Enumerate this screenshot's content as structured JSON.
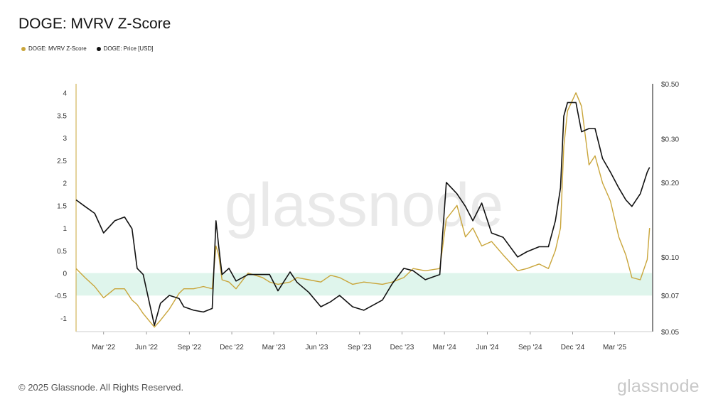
{
  "title": "DOGE: MVRV Z-Score",
  "legend": [
    {
      "label": "DOGE: MVRV Z-Score",
      "color": "#c9a53a"
    },
    {
      "label": "DOGE: Price [USD]",
      "color": "#111111"
    }
  ],
  "footer": "© 2025 Glassnode. All Rights Reserved.",
  "brand": "glassnode",
  "watermark": "glassnode",
  "colors": {
    "zscore": "#c9a53a",
    "price": "#111111",
    "band": "#dff5ec",
    "grid": "#eeeeee"
  },
  "chart_data": {
    "type": "line",
    "title": "DOGE: MVRV Z-Score",
    "x_ticks": [
      "Mar '22",
      "Jun '22",
      "Sep '22",
      "Dec '22",
      "Mar '23",
      "Jun '23",
      "Sep '23",
      "Dec '23",
      "Mar '24",
      "Jun '24",
      "Sep '24",
      "Dec '24",
      "Mar '25"
    ],
    "x_range": [
      "2022-01-01",
      "2025-05-20"
    ],
    "y_left": {
      "ticks": [
        "4",
        "3.5",
        "3",
        "2.5",
        "2",
        "1.5",
        "1",
        "0.5",
        "0",
        "-0.5",
        "-1"
      ],
      "range": [
        -1.3,
        4.2
      ]
    },
    "y_right": {
      "ticks": [
        "$0.50",
        "$0.30",
        "$0.20",
        "$0.10",
        "$0.07",
        "$0.05"
      ],
      "scale": "log",
      "range": [
        0.05,
        0.5
      ]
    },
    "band": {
      "from": -0.5,
      "to": 0
    },
    "series": [
      {
        "name": "DOGE: MVRV Z-Score",
        "axis": "left",
        "x": [
          "2022-01-01",
          "2022-01-20",
          "2022-02-10",
          "2022-03-01",
          "2022-03-25",
          "2022-04-15",
          "2022-05-01",
          "2022-05-12",
          "2022-05-25",
          "2022-06-10",
          "2022-06-18",
          "2022-07-01",
          "2022-07-20",
          "2022-08-10",
          "2022-08-20",
          "2022-09-10",
          "2022-10-01",
          "2022-10-20",
          "2022-10-28",
          "2022-11-03",
          "2022-11-10",
          "2022-11-25",
          "2022-12-10",
          "2023-01-05",
          "2023-02-05",
          "2023-02-20",
          "2023-03-10",
          "2023-04-05",
          "2023-04-20",
          "2023-05-15",
          "2023-06-10",
          "2023-07-01",
          "2023-07-20",
          "2023-08-17",
          "2023-09-10",
          "2023-10-20",
          "2023-11-10",
          "2023-12-05",
          "2023-12-25",
          "2024-01-20",
          "2024-02-20",
          "2024-03-05",
          "2024-03-28",
          "2024-04-15",
          "2024-05-01",
          "2024-05-20",
          "2024-06-10",
          "2024-07-05",
          "2024-08-05",
          "2024-08-25",
          "2024-09-20",
          "2024-10-10",
          "2024-10-25",
          "2024-11-05",
          "2024-11-12",
          "2024-11-20",
          "2024-12-08",
          "2024-12-20",
          "2025-01-05",
          "2025-01-18",
          "2025-02-03",
          "2025-02-20",
          "2025-03-10",
          "2025-03-25",
          "2025-04-07",
          "2025-04-25",
          "2025-05-10",
          "2025-05-15"
        ],
        "y": [
          0.1,
          -0.1,
          -0.3,
          -0.55,
          -0.35,
          -0.35,
          -0.6,
          -0.7,
          -0.9,
          -1.1,
          -1.2,
          -1.05,
          -0.8,
          -0.45,
          -0.35,
          -0.35,
          -0.3,
          -0.35,
          0.6,
          0.4,
          -0.15,
          -0.2,
          -0.35,
          0.0,
          -0.1,
          -0.2,
          -0.25,
          -0.2,
          -0.1,
          -0.15,
          -0.2,
          -0.05,
          -0.1,
          -0.25,
          -0.2,
          -0.25,
          -0.2,
          -0.1,
          0.1,
          0.05,
          0.1,
          1.2,
          1.5,
          0.8,
          1.0,
          0.6,
          0.7,
          0.4,
          0.05,
          0.1,
          0.2,
          0.1,
          0.5,
          1.0,
          2.8,
          3.6,
          4.0,
          3.7,
          2.4,
          2.6,
          2.0,
          1.6,
          0.8,
          0.4,
          -0.1,
          -0.15,
          0.3,
          1.0
        ]
      },
      {
        "name": "DOGE: Price [USD]",
        "axis": "right",
        "x": [
          "2022-01-01",
          "2022-01-20",
          "2022-02-10",
          "2022-03-01",
          "2022-03-25",
          "2022-04-15",
          "2022-05-01",
          "2022-05-12",
          "2022-05-25",
          "2022-06-10",
          "2022-06-18",
          "2022-07-01",
          "2022-07-20",
          "2022-08-10",
          "2022-08-20",
          "2022-09-10",
          "2022-10-01",
          "2022-10-20",
          "2022-10-28",
          "2022-11-03",
          "2022-11-10",
          "2022-11-25",
          "2022-12-10",
          "2023-01-05",
          "2023-02-05",
          "2023-02-20",
          "2023-03-10",
          "2023-04-05",
          "2023-04-20",
          "2023-05-15",
          "2023-06-10",
          "2023-07-01",
          "2023-07-20",
          "2023-08-17",
          "2023-09-10",
          "2023-10-20",
          "2023-11-10",
          "2023-12-05",
          "2023-12-25",
          "2024-01-20",
          "2024-02-20",
          "2024-03-05",
          "2024-03-28",
          "2024-04-15",
          "2024-05-01",
          "2024-05-20",
          "2024-06-10",
          "2024-07-05",
          "2024-08-05",
          "2024-08-25",
          "2024-09-20",
          "2024-10-10",
          "2024-10-25",
          "2024-11-05",
          "2024-11-12",
          "2024-11-20",
          "2024-12-08",
          "2024-12-20",
          "2025-01-05",
          "2025-01-18",
          "2025-02-03",
          "2025-02-20",
          "2025-03-10",
          "2025-03-25",
          "2025-04-07",
          "2025-04-25",
          "2025-05-10",
          "2025-05-15"
        ],
        "y": [
          0.17,
          0.16,
          0.15,
          0.125,
          0.14,
          0.145,
          0.13,
          0.09,
          0.085,
          0.062,
          0.053,
          0.065,
          0.07,
          0.068,
          0.063,
          0.061,
          0.06,
          0.062,
          0.14,
          0.11,
          0.085,
          0.09,
          0.08,
          0.085,
          0.085,
          0.085,
          0.073,
          0.087,
          0.079,
          0.072,
          0.063,
          0.066,
          0.07,
          0.063,
          0.061,
          0.067,
          0.078,
          0.09,
          0.088,
          0.081,
          0.085,
          0.2,
          0.18,
          0.16,
          0.14,
          0.165,
          0.125,
          0.12,
          0.1,
          0.105,
          0.11,
          0.11,
          0.14,
          0.19,
          0.37,
          0.42,
          0.42,
          0.32,
          0.33,
          0.33,
          0.25,
          0.22,
          0.19,
          0.17,
          0.16,
          0.18,
          0.22,
          0.23
        ]
      }
    ]
  }
}
